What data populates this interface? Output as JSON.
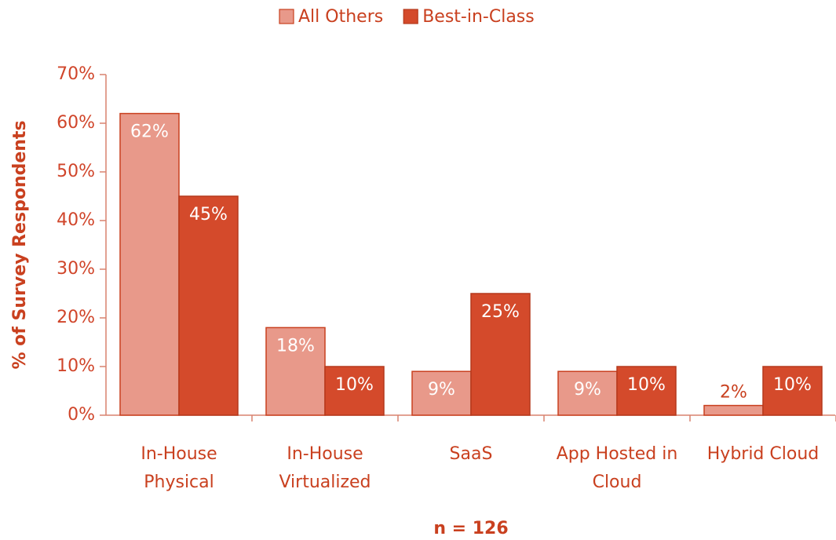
{
  "chart_data": {
    "type": "bar",
    "ylabel": "% of Survey Respondents",
    "note": "n = 126",
    "categories": [
      [
        "In-House",
        "Physical"
      ],
      [
        "In-House",
        "Virtualized"
      ],
      [
        "SaaS"
      ],
      [
        "App Hosted in",
        "Cloud"
      ],
      [
        "Hybrid Cloud"
      ]
    ],
    "series": [
      {
        "name": "All Others",
        "color": "#e8998a",
        "values": [
          62,
          18,
          9,
          9,
          2
        ],
        "value_labels": [
          "62%",
          "18%",
          "9%",
          "9%",
          "2%"
        ]
      },
      {
        "name": "Best-in-Class",
        "color": "#d44a2b",
        "values": [
          45,
          10,
          25,
          10,
          10
        ],
        "value_labels": [
          "45%",
          "10%",
          "25%",
          "10%",
          "10%"
        ]
      }
    ],
    "ylim": [
      0,
      70
    ],
    "yticks": [
      {
        "value": 0,
        "label": "0%"
      },
      {
        "value": 10,
        "label": "10%"
      },
      {
        "value": 20,
        "label": "20%"
      },
      {
        "value": 30,
        "label": "30%"
      },
      {
        "value": 40,
        "label": "40%"
      },
      {
        "value": 50,
        "label": "50%"
      },
      {
        "value": 60,
        "label": "60%"
      },
      {
        "value": 70,
        "label": "70%"
      }
    ],
    "legend": "top"
  }
}
